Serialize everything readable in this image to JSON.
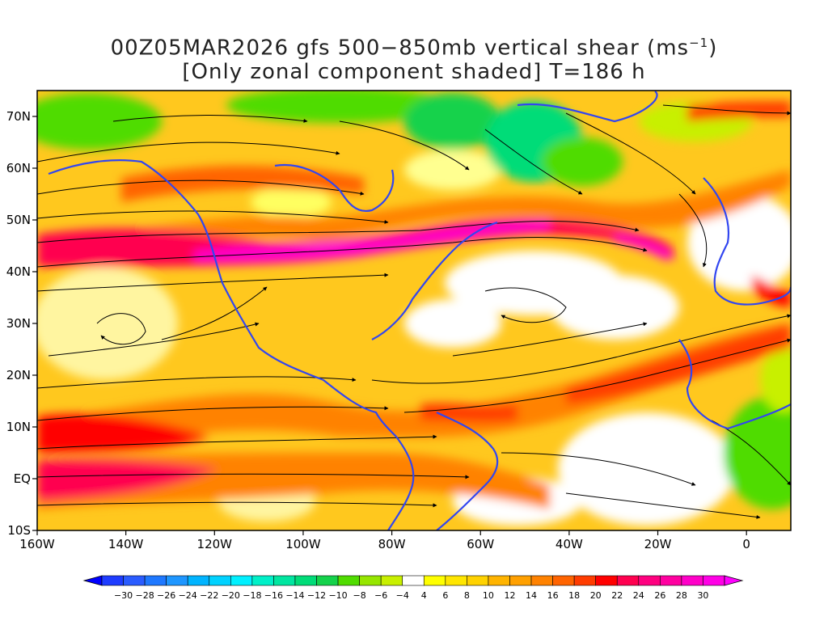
{
  "title_line1": "00Z05MAR2026 gfs 500−850mb vertical shear (ms",
  "title_unit_sup": "−1",
  "title_line1_end": ")",
  "title_line2": "[Only zonal component shaded] T=186 h",
  "lat_labels": [
    "70N",
    "60N",
    "50N",
    "40N",
    "30N",
    "20N",
    "10N",
    "EQ",
    "10S"
  ],
  "lat_values": [
    70,
    60,
    50,
    40,
    30,
    20,
    10,
    0,
    -10
  ],
  "lon_labels": [
    "160W",
    "140W",
    "120W",
    "100W",
    "80W",
    "60W",
    "40W",
    "20W",
    "0"
  ],
  "lon_values": [
    -160,
    -140,
    -120,
    -100,
    -80,
    -60,
    -40,
    -20,
    0
  ],
  "extent": {
    "lon_min": -160,
    "lon_max": 10,
    "lat_min": -10,
    "lat_max": 75
  },
  "colorbar": {
    "labels": [
      "−30",
      "−28",
      "−26",
      "−24",
      "−22",
      "−20",
      "−18",
      "−16",
      "−14",
      "−12",
      "−10",
      "−8",
      "−6",
      "−4",
      "4",
      "6",
      "8",
      "10",
      "12",
      "14",
      "16",
      "18",
      "20",
      "22",
      "24",
      "26",
      "28",
      "30"
    ],
    "colors": [
      "#1e3cff",
      "#2a5cff",
      "#1e78ff",
      "#1e96ff",
      "#00b4ff",
      "#00d2ff",
      "#00f0ff",
      "#00f0c8",
      "#00e6a0",
      "#00dc78",
      "#14d24b",
      "#50dc00",
      "#96e600",
      "#c8f000",
      "#ffffff",
      "#ffff00",
      "#ffe600",
      "#ffd200",
      "#ffb400",
      "#ffa000",
      "#ff8200",
      "#ff6400",
      "#ff3c00",
      "#ff0000",
      "#ff0050",
      "#ff0080",
      "#ff00a0",
      "#ff00c8",
      "#ff00e6"
    ]
  },
  "colors": {
    "coastline": "#3246f0",
    "streamline": "#000000"
  }
}
